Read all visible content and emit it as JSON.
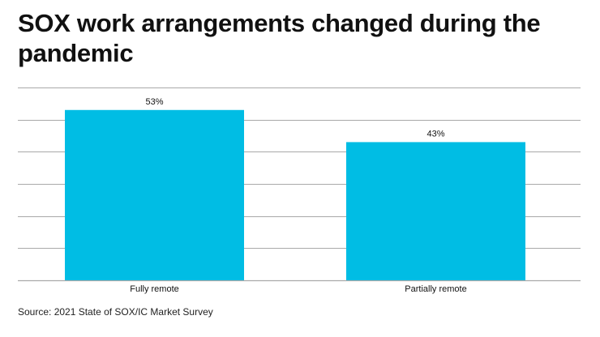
{
  "title": "SOX work arrangements changed during the pandemic",
  "source": "Source: 2021 State of SOX/IC Market Survey",
  "colors": {
    "bar": "#00bde4",
    "grid": "#a9a9a9",
    "text": "#111111"
  },
  "chart_data": {
    "type": "bar",
    "categories": [
      "Fully remote",
      "Partially remote"
    ],
    "values": [
      53,
      43
    ],
    "value_labels": [
      "53%",
      "43%"
    ],
    "ylim": [
      0,
      60
    ],
    "grid": true,
    "xlabel": "",
    "ylabel": ""
  }
}
